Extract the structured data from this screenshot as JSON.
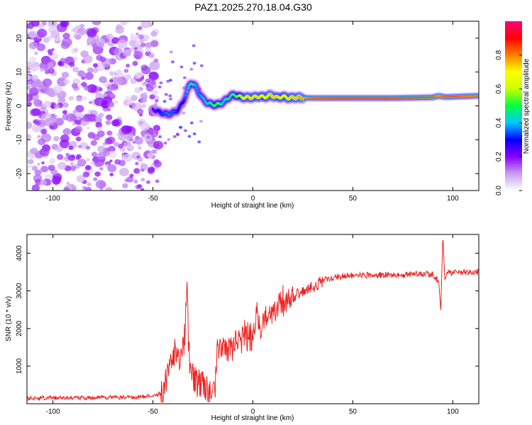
{
  "figure_title": "PAZ1.2025.270.18.04.G30",
  "chart_data": [
    {
      "type": "heatmap",
      "title": "PAZ1.2025.270.18.04.G30",
      "xlabel": "Height of straight line (km)",
      "ylabel": "Frequency (Hz)",
      "xlim": [
        -113,
        113
      ],
      "ylim": [
        -25,
        25
      ],
      "x_ticks": [
        -100,
        -50,
        0,
        50,
        100
      ],
      "y_ticks": [
        -20,
        -10,
        0,
        10,
        20
      ],
      "x_tick_labels": [
        "-100",
        "-50",
        "0",
        "50",
        "100"
      ],
      "y_tick_labels": [
        "-20",
        "-10",
        "0",
        "10",
        "20"
      ],
      "colorbar": {
        "label": "Normalized spectral amplitude",
        "range": [
          0,
          1
        ],
        "ticks": [
          0.0,
          0.2,
          0.4,
          0.6,
          0.8
        ],
        "tick_labels": [
          "0.0",
          "0.2",
          "0.4",
          "0.6",
          "0.8"
        ],
        "colors": [
          "#ffffff",
          "#c89cf0",
          "#8a00ff",
          "#0000ff",
          "#00c8ff",
          "#00ff40",
          "#c8ff00",
          "#ffff00",
          "#ff8000",
          "#ff0000",
          "#ff0080"
        ]
      },
      "signal_track": {
        "x": [
          -50,
          -46,
          -42,
          -38,
          -35,
          -33,
          -31,
          -29,
          -27,
          -25,
          -23,
          -21,
          -19,
          -17,
          -15,
          -13,
          -11,
          -9,
          -7,
          -5,
          -3,
          0,
          3,
          6,
          9,
          12,
          15,
          18,
          21,
          25,
          30,
          40,
          50,
          60,
          70,
          80,
          90,
          93,
          96,
          100,
          105,
          110,
          113
        ],
        "frequency": [
          -1,
          -2,
          -2.5,
          -1.5,
          1,
          4,
          7,
          6,
          4,
          2,
          1,
          0.5,
          0.3,
          0.5,
          1,
          2,
          3,
          3.2,
          2.8,
          2.5,
          2.5,
          2.5,
          2.8,
          2.6,
          3.2,
          2.4,
          2.8,
          2.3,
          2.5,
          2.4,
          2.3,
          2.3,
          2.3,
          2.3,
          2.3,
          2.4,
          2.5,
          3,
          2.6,
          2.7,
          2.8,
          2.9,
          3
        ],
        "amplitude": [
          0.25,
          0.35,
          0.4,
          0.35,
          0.3,
          0.45,
          0.5,
          0.45,
          0.4,
          0.45,
          0.45,
          0.5,
          0.55,
          0.55,
          0.45,
          0.5,
          0.5,
          0.55,
          0.6,
          0.7,
          0.75,
          0.75,
          0.75,
          0.7,
          0.8,
          0.75,
          0.7,
          0.75,
          0.8,
          0.85,
          0.9,
          0.92,
          0.93,
          0.93,
          0.92,
          0.92,
          0.9,
          0.85,
          0.9,
          0.9,
          0.88,
          0.88,
          0.88
        ]
      },
      "noise_region": {
        "x_range": [
          -113,
          -47
        ],
        "frequency_range": [
          -25,
          25
        ],
        "typical_amplitude": 0.15
      }
    },
    {
      "type": "line",
      "title": "",
      "xlabel": "Height of straight line (km)",
      "ylabel": "SNR (10 * v/v)",
      "xlim": [
        -113,
        113
      ],
      "ylim": [
        0,
        4500
      ],
      "x_ticks": [
        -100,
        -50,
        0,
        50,
        100
      ],
      "y_ticks": [
        1000,
        2000,
        3000,
        4000
      ],
      "x_tick_labels": [
        "-100",
        "-50",
        "0",
        "50",
        "100"
      ],
      "y_tick_labels": [
        "1000",
        "2000",
        "3000",
        "4000"
      ],
      "series": [
        {
          "name": "SNR",
          "color": "#ee2222",
          "x": [
            -113,
            -100,
            -90,
            -80,
            -70,
            -60,
            -55,
            -50,
            -46,
            -44,
            -42,
            -40,
            -38,
            -36,
            -34,
            -33,
            -32,
            -31,
            -30,
            -28,
            -26,
            -24,
            -22,
            -20,
            -19,
            -18,
            -16,
            -14,
            -12,
            -10,
            -8,
            -6,
            -4,
            -2,
            0,
            2,
            4,
            6,
            8,
            10,
            12,
            14,
            16,
            18,
            20,
            22,
            24,
            26,
            28,
            30,
            33,
            36,
            40,
            45,
            50,
            60,
            70,
            80,
            90,
            93,
            94,
            95,
            96,
            98,
            100,
            105,
            110,
            113
          ],
          "y": [
            140,
            160,
            150,
            160,
            170,
            170,
            190,
            200,
            280,
            500,
            800,
            1200,
            1500,
            1100,
            1800,
            2950,
            1400,
            900,
            700,
            600,
            500,
            450,
            350,
            200,
            300,
            1500,
            1300,
            1600,
            1400,
            1500,
            1700,
            1600,
            1900,
            1700,
            1800,
            2400,
            2000,
            2300,
            2500,
            2300,
            2600,
            2700,
            2600,
            2800,
            2800,
            2900,
            2900,
            3000,
            3100,
            3100,
            3200,
            3300,
            3350,
            3400,
            3420,
            3420,
            3420,
            3430,
            3450,
            3250,
            2450,
            4500,
            3300,
            3500,
            3480,
            3500,
            3500,
            3510
          ]
        }
      ]
    }
  ]
}
